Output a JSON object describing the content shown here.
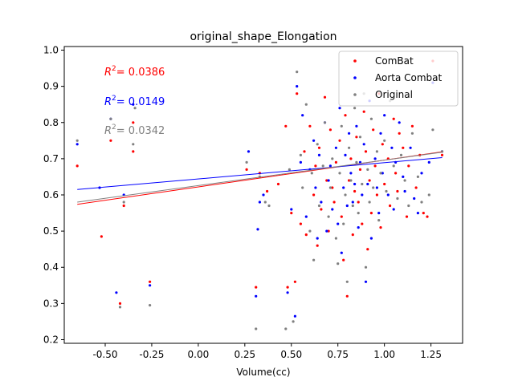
{
  "chart_data": {
    "type": "scatter",
    "title": "original_shape_Elongation",
    "xlabel": "Volume(cc)",
    "ylabel": "",
    "xlim": [
      -0.72,
      1.42
    ],
    "ylim": [
      0.19,
      1.01
    ],
    "xticks": [
      "-0.50",
      "-0.25",
      "0.00",
      "0.25",
      "0.50",
      "0.75",
      "1.00",
      "1.25"
    ],
    "xtick_values": [
      -0.5,
      -0.25,
      0.0,
      0.25,
      0.5,
      0.75,
      1.0,
      1.25
    ],
    "yticks": [
      "0.2",
      "0.3",
      "0.4",
      "0.5",
      "0.6",
      "0.7",
      "0.8",
      "0.9",
      "1.0"
    ],
    "ytick_values": [
      0.2,
      0.3,
      0.4,
      0.5,
      0.6,
      0.7,
      0.8,
      0.9,
      1.0
    ],
    "grid": false,
    "legend_position": "top-right",
    "series": [
      {
        "name": "ComBat",
        "color": "#ff0000",
        "r2_text": "= 0.0386",
        "fit": {
          "x": [
            -0.65,
            1.31
          ],
          "y": [
            0.574,
            0.719
          ]
        },
        "points": [
          [
            -0.65,
            0.68
          ],
          [
            -0.52,
            0.485
          ],
          [
            -0.47,
            0.75
          ],
          [
            -0.42,
            0.3
          ],
          [
            -0.4,
            0.57
          ],
          [
            -0.35,
            0.72
          ],
          [
            -0.35,
            0.8
          ],
          [
            -0.26,
            0.36
          ],
          [
            0.26,
            0.67
          ],
          [
            0.31,
            0.345
          ],
          [
            0.33,
            0.66
          ],
          [
            0.37,
            0.61
          ],
          [
            0.43,
            0.63
          ],
          [
            0.47,
            0.79
          ],
          [
            0.48,
            0.345
          ],
          [
            0.5,
            0.55
          ],
          [
            0.52,
            0.36
          ],
          [
            0.53,
            0.88
          ],
          [
            0.55,
            0.52
          ],
          [
            0.57,
            0.72
          ],
          [
            0.58,
            0.49
          ],
          [
            0.6,
            0.79
          ],
          [
            0.62,
            0.6
          ],
          [
            0.63,
            0.68
          ],
          [
            0.64,
            0.46
          ],
          [
            0.65,
            0.73
          ],
          [
            0.66,
            0.56
          ],
          [
            0.68,
            0.87
          ],
          [
            0.69,
            0.64
          ],
          [
            0.7,
            0.5
          ],
          [
            0.71,
            0.78
          ],
          [
            0.72,
            0.62
          ],
          [
            0.73,
            0.58
          ],
          [
            0.74,
            0.69
          ],
          [
            0.76,
            0.75
          ],
          [
            0.77,
            0.54
          ],
          [
            0.78,
            0.42
          ],
          [
            0.79,
            0.82
          ],
          [
            0.8,
            0.32
          ],
          [
            0.81,
            0.64
          ],
          [
            0.82,
            0.7
          ],
          [
            0.83,
            0.49
          ],
          [
            0.84,
            0.61
          ],
          [
            0.85,
            0.76
          ],
          [
            0.86,
            0.58
          ],
          [
            0.87,
            0.67
          ],
          [
            0.88,
            0.52
          ],
          [
            0.89,
            0.83
          ],
          [
            0.9,
            0.72
          ],
          [
            0.91,
            0.45
          ],
          [
            0.92,
            0.64
          ],
          [
            0.93,
            0.55
          ],
          [
            0.94,
            0.78
          ],
          [
            0.95,
            0.68
          ],
          [
            0.96,
            0.6
          ],
          [
            0.97,
            0.88
          ],
          [
            0.98,
            0.51
          ],
          [
            0.99,
            0.74
          ],
          [
            1.0,
            0.63
          ],
          [
            1.02,
            0.7
          ],
          [
            1.03,
            0.57
          ],
          [
            1.05,
            0.81
          ],
          [
            1.06,
            0.66
          ],
          [
            1.07,
            0.61
          ],
          [
            1.08,
            0.77
          ],
          [
            1.1,
            0.73
          ],
          [
            1.12,
            0.54
          ],
          [
            1.13,
            0.68
          ],
          [
            1.15,
            0.79
          ],
          [
            1.17,
            0.62
          ],
          [
            1.19,
            0.71
          ],
          [
            1.21,
            0.55
          ],
          [
            1.23,
            0.54
          ],
          [
            1.26,
            0.97
          ],
          [
            1.31,
            0.71
          ]
        ]
      },
      {
        "name": "Aorta Combat",
        "color": "#0000ff",
        "r2_text": "= 0.0149",
        "fit": {
          "x": [
            -0.65,
            1.31
          ],
          "y": [
            0.615,
            0.703
          ]
        },
        "points": [
          [
            -0.65,
            0.74
          ],
          [
            -0.53,
            0.62
          ],
          [
            -0.47,
            0.81
          ],
          [
            -0.44,
            0.33
          ],
          [
            -0.4,
            0.6
          ],
          [
            -0.35,
            0.85
          ],
          [
            -0.26,
            0.35
          ],
          [
            0.27,
            0.72
          ],
          [
            0.31,
            0.32
          ],
          [
            0.32,
            0.505
          ],
          [
            0.33,
            0.58
          ],
          [
            0.35,
            0.6
          ],
          [
            0.48,
            0.33
          ],
          [
            0.5,
            0.56
          ],
          [
            0.52,
            0.265
          ],
          [
            0.53,
            0.9
          ],
          [
            0.55,
            0.69
          ],
          [
            0.56,
            0.82
          ],
          [
            0.58,
            0.54
          ],
          [
            0.6,
            0.67
          ],
          [
            0.62,
            0.75
          ],
          [
            0.63,
            0.62
          ],
          [
            0.64,
            0.48
          ],
          [
            0.65,
            0.71
          ],
          [
            0.66,
            0.58
          ],
          [
            0.68,
            0.8
          ],
          [
            0.69,
            0.5
          ],
          [
            0.7,
            0.64
          ],
          [
            0.71,
            0.68
          ],
          [
            0.72,
            0.56
          ],
          [
            0.74,
            0.73
          ],
          [
            0.75,
            0.52
          ],
          [
            0.76,
            0.84
          ],
          [
            0.77,
            0.44
          ],
          [
            0.78,
            0.62
          ],
          [
            0.79,
            0.71
          ],
          [
            0.8,
            0.57
          ],
          [
            0.81,
            0.77
          ],
          [
            0.82,
            0.66
          ],
          [
            0.83,
            0.58
          ],
          [
            0.84,
            0.63
          ],
          [
            0.85,
            0.79
          ],
          [
            0.86,
            0.51
          ],
          [
            0.87,
            0.69
          ],
          [
            0.88,
            0.6
          ],
          [
            0.89,
            0.74
          ],
          [
            0.9,
            0.36
          ],
          [
            0.91,
            0.63
          ],
          [
            0.92,
            0.86
          ],
          [
            0.93,
            0.48
          ],
          [
            0.95,
            0.7
          ],
          [
            0.96,
            0.62
          ],
          [
            0.97,
            0.55
          ],
          [
            0.98,
            0.77
          ],
          [
            0.99,
            0.66
          ],
          [
            1.0,
            0.82
          ],
          [
            1.02,
            0.6
          ],
          [
            1.04,
            0.73
          ],
          [
            1.05,
            0.56
          ],
          [
            1.06,
            0.69
          ],
          [
            1.08,
            0.8
          ],
          [
            1.1,
            0.65
          ],
          [
            1.11,
            0.61
          ],
          [
            1.14,
            0.73
          ],
          [
            1.16,
            0.59
          ],
          [
            1.18,
            0.55
          ],
          [
            1.2,
            0.66
          ],
          [
            1.24,
            0.69
          ],
          [
            1.26,
            0.91
          ],
          [
            1.31,
            0.72
          ]
        ]
      },
      {
        "name": "Original",
        "color": "#808080",
        "r2_text": "= 0.0342",
        "fit": {
          "x": [
            -0.65,
            1.31
          ],
          "y": [
            0.58,
            0.718
          ]
        },
        "points": [
          [
            -0.65,
            0.75
          ],
          [
            -0.47,
            0.81
          ],
          [
            -0.42,
            0.29
          ],
          [
            -0.4,
            0.58
          ],
          [
            -0.35,
            0.74
          ],
          [
            -0.34,
            0.84
          ],
          [
            -0.26,
            0.295
          ],
          [
            0.26,
            0.69
          ],
          [
            0.31,
            0.23
          ],
          [
            0.33,
            0.65
          ],
          [
            0.36,
            0.58
          ],
          [
            0.38,
            0.57
          ],
          [
            0.47,
            0.23
          ],
          [
            0.49,
            0.67
          ],
          [
            0.51,
            0.25
          ],
          [
            0.53,
            0.94
          ],
          [
            0.55,
            0.71
          ],
          [
            0.56,
            0.62
          ],
          [
            0.58,
            0.85
          ],
          [
            0.6,
            0.5
          ],
          [
            0.61,
            0.66
          ],
          [
            0.62,
            0.42
          ],
          [
            0.64,
            0.74
          ],
          [
            0.65,
            0.57
          ],
          [
            0.67,
            0.68
          ],
          [
            0.68,
            0.8
          ],
          [
            0.7,
            0.54
          ],
          [
            0.71,
            0.62
          ],
          [
            0.72,
            0.7
          ],
          [
            0.74,
            0.48
          ],
          [
            0.75,
            0.41
          ],
          [
            0.76,
            0.66
          ],
          [
            0.77,
            0.79
          ],
          [
            0.78,
            0.52
          ],
          [
            0.79,
            0.6
          ],
          [
            0.8,
            0.36
          ],
          [
            0.81,
            0.73
          ],
          [
            0.82,
            0.64
          ],
          [
            0.83,
            0.57
          ],
          [
            0.84,
            0.84
          ],
          [
            0.85,
            0.69
          ],
          [
            0.86,
            0.55
          ],
          [
            0.87,
            0.76
          ],
          [
            0.88,
            0.63
          ],
          [
            0.89,
            0.88
          ],
          [
            0.9,
            0.4
          ],
          [
            0.91,
            0.67
          ],
          [
            0.92,
            0.58
          ],
          [
            0.93,
            0.81
          ],
          [
            0.94,
            0.62
          ],
          [
            0.96,
            0.72
          ],
          [
            0.97,
            0.53
          ],
          [
            0.98,
            0.66
          ],
          [
            1.0,
            0.75
          ],
          [
            1.01,
            0.61
          ],
          [
            1.03,
            0.86
          ],
          [
            1.05,
            0.68
          ],
          [
            1.07,
            0.59
          ],
          [
            1.09,
            0.71
          ],
          [
            1.11,
            0.64
          ],
          [
            1.13,
            0.57
          ],
          [
            1.15,
            0.77
          ],
          [
            1.18,
            0.65
          ],
          [
            1.2,
            0.58
          ],
          [
            1.24,
            0.6
          ],
          [
            1.26,
            0.78
          ],
          [
            1.31,
            0.72
          ]
        ]
      }
    ]
  }
}
